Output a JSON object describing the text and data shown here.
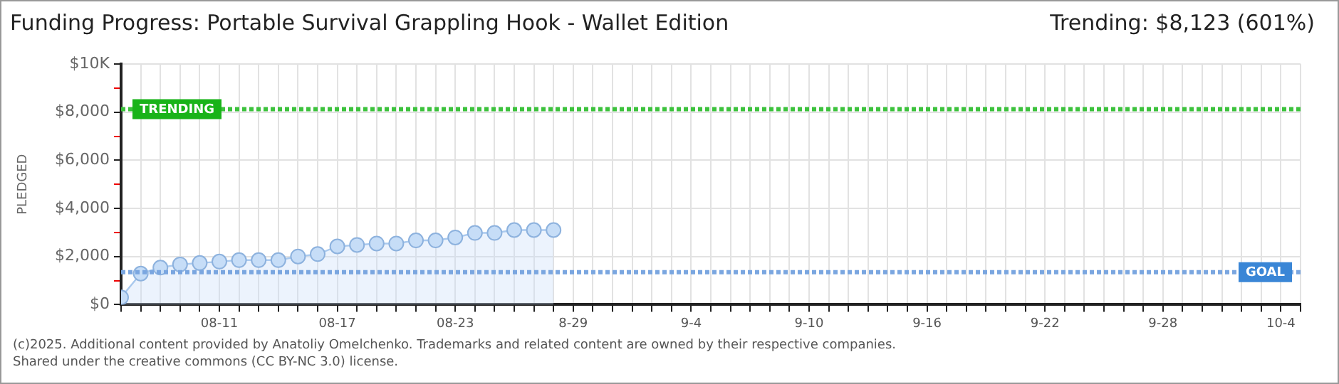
{
  "chart_data": {
    "type": "area",
    "title": "Funding Progress: Portable Survival Grappling Hook - Wallet Edition",
    "subtitle": "Trending: $8,123 (601%)",
    "ylabel": "PLEDGED",
    "x": [
      "--08-06",
      "--08-07",
      "--08-08",
      "--08-09",
      "--08-10",
      "--08-11",
      "--08-12",
      "--08-13",
      "--08-14",
      "--08-15",
      "--08-16",
      "--08-17",
      "--08-18",
      "--08-19",
      "--08-20",
      "--08-21",
      "--08-22",
      "--08-23",
      "--08-24",
      "--08-25",
      "--08-26",
      "--08-27",
      "--08-28"
    ],
    "series": [
      {
        "color": "#a9c9ee",
        "values": [
          300,
          1290,
          1540,
          1670,
          1730,
          1790,
          1850,
          1850,
          1850,
          2000,
          2100,
          2420,
          2480,
          2540,
          2540,
          2670,
          2670,
          2790,
          2980,
          2980,
          3100,
          3100,
          3100
        ]
      }
    ],
    "xlim": [
      "--08-06",
      "--10-05"
    ],
    "xticks": [
      {
        "value": "--08-06",
        "label": null
      },
      {
        "value": "--08-07",
        "label": null
      },
      {
        "value": "--08-08",
        "label": null
      },
      {
        "value": "--08-09",
        "label": null
      },
      {
        "value": "--08-10",
        "label": null
      },
      {
        "value": "--08-11",
        "label": "08-11"
      },
      {
        "value": "--08-12",
        "label": null
      },
      {
        "value": "--08-13",
        "label": null
      },
      {
        "value": "--08-14",
        "label": null
      },
      {
        "value": "--08-15",
        "label": null
      },
      {
        "value": "--08-16",
        "label": null
      },
      {
        "value": "--08-17",
        "label": "08-17"
      },
      {
        "value": "--08-18",
        "label": null
      },
      {
        "value": "--08-19",
        "label": null
      },
      {
        "value": "--08-20",
        "label": null
      },
      {
        "value": "--08-21",
        "label": null
      },
      {
        "value": "--08-22",
        "label": null
      },
      {
        "value": "--08-23",
        "label": "08-23"
      },
      {
        "value": "--08-24",
        "label": null
      },
      {
        "value": "--08-25",
        "label": null
      },
      {
        "value": "--08-26",
        "label": null
      },
      {
        "value": "--08-27",
        "label": null
      },
      {
        "value": "--08-28",
        "label": null
      },
      {
        "value": "--08-29",
        "label": "8-29"
      },
      {
        "value": "--08-30",
        "label": null
      },
      {
        "value": "--08-31",
        "label": null
      },
      {
        "value": "--09-01",
        "label": null
      },
      {
        "value": "--09-02",
        "label": null
      },
      {
        "value": "--09-03",
        "label": null
      },
      {
        "value": "--09-04",
        "label": "9-4"
      },
      {
        "value": "--09-05",
        "label": null
      },
      {
        "value": "--09-06",
        "label": null
      },
      {
        "value": "--09-07",
        "label": null
      },
      {
        "value": "--09-08",
        "label": null
      },
      {
        "value": "--09-09",
        "label": null
      },
      {
        "value": "--09-10",
        "label": "9-10"
      },
      {
        "value": "--09-11",
        "label": null
      },
      {
        "value": "--09-12",
        "label": null
      },
      {
        "value": "--09-13",
        "label": null
      },
      {
        "value": "--09-14",
        "label": null
      },
      {
        "value": "--09-15",
        "label": null
      },
      {
        "value": "--09-16",
        "label": "9-16"
      },
      {
        "value": "--09-17",
        "label": null
      },
      {
        "value": "--09-18",
        "label": null
      },
      {
        "value": "--09-19",
        "label": null
      },
      {
        "value": "--09-20",
        "label": null
      },
      {
        "value": "--09-21",
        "label": null
      },
      {
        "value": "--09-22",
        "label": "9-22"
      },
      {
        "value": "--09-23",
        "label": null
      },
      {
        "value": "--09-24",
        "label": null
      },
      {
        "value": "--09-25",
        "label": null
      },
      {
        "value": "--09-26",
        "label": null
      },
      {
        "value": "--09-27",
        "label": null
      },
      {
        "value": "--09-28",
        "label": "9-28"
      },
      {
        "value": "--09-29",
        "label": null
      },
      {
        "value": "--09-30",
        "label": null
      },
      {
        "value": "--10-01",
        "label": null
      },
      {
        "value": "--10-02",
        "label": null
      },
      {
        "value": "--10-03",
        "label": null
      },
      {
        "value": "--10-04",
        "label": "10-4"
      },
      {
        "value": "--10-05",
        "label": null
      }
    ],
    "ylim": [
      0,
      10000
    ],
    "yticks": [
      {
        "value": 0,
        "label": "$0"
      },
      {
        "value": 1000,
        "label": null
      },
      {
        "value": 2000,
        "label": "$2,000"
      },
      {
        "value": 3000,
        "label": null
      },
      {
        "value": 4000,
        "label": "$4,000"
      },
      {
        "value": 5000,
        "label": null
      },
      {
        "value": 6000,
        "label": "$6,000"
      },
      {
        "value": 7000,
        "label": null
      },
      {
        "value": 8000,
        "label": "$8,000"
      },
      {
        "value": 9000,
        "label": null
      },
      {
        "value": 10000,
        "label": "$10K"
      }
    ],
    "ref_lines": [
      {
        "axis": "y",
        "value": 8123,
        "label": "TRENDING",
        "color": "#3cc23c",
        "line_style": "dotted"
      },
      {
        "axis": "y",
        "value": 1350,
        "label": "GOAL",
        "color": "#7aa6e0",
        "line_style": "dotted"
      }
    ],
    "annotations": [
      "(c)2025. Additional content provided by Anatoliy Omelchenko. Trademarks and related content are owned by their respective companies.",
      "Shared under the creative commons (CC BY-NC 3.0) license."
    ],
    "grid": true,
    "legend": false,
    "marker": "circle"
  }
}
